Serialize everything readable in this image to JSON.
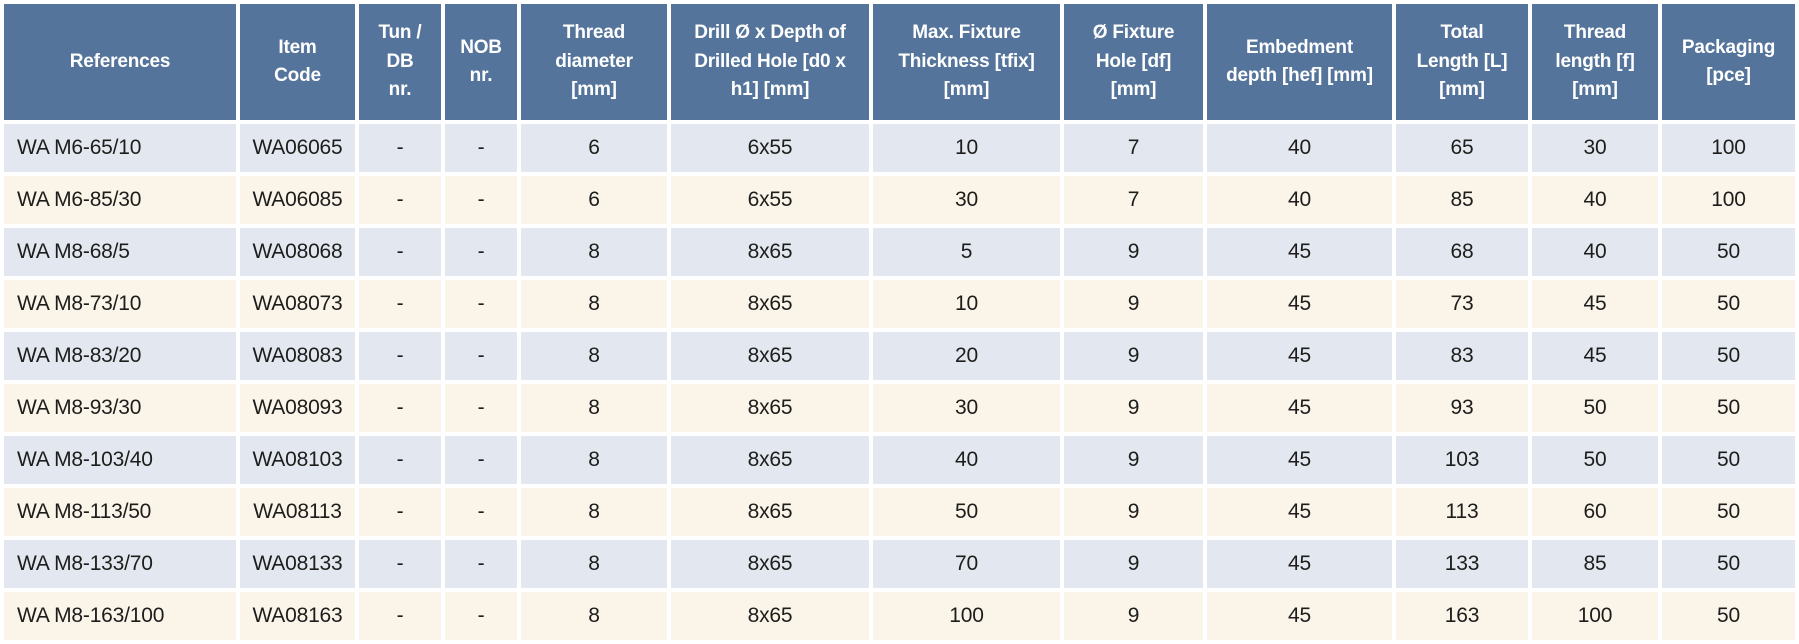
{
  "colors": {
    "header_bg": "#54749b",
    "header_text": "#ffffff",
    "row_stripe_blue": "#e3e8f0",
    "row_stripe_cream": "#faf4e9",
    "grid_gap": "#ffffff",
    "body_text": "#1d1d1b"
  },
  "table": {
    "columns": [
      {
        "key": "references",
        "label": "References"
      },
      {
        "key": "item_code",
        "label": "Item\nCode"
      },
      {
        "key": "tun_db_nr",
        "label": "Tun /\nDB\nnr."
      },
      {
        "key": "nob_nr",
        "label": "NOB\nnr."
      },
      {
        "key": "thread_diameter",
        "label": "Thread\ndiameter\n[mm]"
      },
      {
        "key": "drill_depth",
        "label": "Drill Ø x Depth of\nDrilled Hole [d0 x\nh1] [mm]"
      },
      {
        "key": "max_fixture_thickness",
        "label": "Max. Fixture\nThickness [tfix]\n[mm]"
      },
      {
        "key": "fixture_hole",
        "label": "Ø Fixture\nHole [df]\n[mm]"
      },
      {
        "key": "embedment_depth",
        "label": "Embedment\ndepth [hef] [mm]"
      },
      {
        "key": "total_length",
        "label": "Total\nLength [L]\n[mm]"
      },
      {
        "key": "thread_length",
        "label": "Thread\nlength [f]\n[mm]"
      },
      {
        "key": "packaging",
        "label": "Packaging\n[pce]"
      }
    ],
    "rows": [
      {
        "references": "WA M6-65/10",
        "item_code": "WA06065",
        "tun_db_nr": "-",
        "nob_nr": "-",
        "thread_diameter": "6",
        "drill_depth": "6x55",
        "max_fixture_thickness": "10",
        "fixture_hole": "7",
        "embedment_depth": "40",
        "total_length": "65",
        "thread_length": "30",
        "packaging": "100"
      },
      {
        "references": "WA M6-85/30",
        "item_code": "WA06085",
        "tun_db_nr": "-",
        "nob_nr": "-",
        "thread_diameter": "6",
        "drill_depth": "6x55",
        "max_fixture_thickness": "30",
        "fixture_hole": "7",
        "embedment_depth": "40",
        "total_length": "85",
        "thread_length": "40",
        "packaging": "100"
      },
      {
        "references": "WA M8-68/5",
        "item_code": "WA08068",
        "tun_db_nr": "-",
        "nob_nr": "-",
        "thread_diameter": "8",
        "drill_depth": "8x65",
        "max_fixture_thickness": "5",
        "fixture_hole": "9",
        "embedment_depth": "45",
        "total_length": "68",
        "thread_length": "40",
        "packaging": "50"
      },
      {
        "references": "WA M8-73/10",
        "item_code": "WA08073",
        "tun_db_nr": "-",
        "nob_nr": "-",
        "thread_diameter": "8",
        "drill_depth": "8x65",
        "max_fixture_thickness": "10",
        "fixture_hole": "9",
        "embedment_depth": "45",
        "total_length": "73",
        "thread_length": "45",
        "packaging": "50"
      },
      {
        "references": "WA M8-83/20",
        "item_code": "WA08083",
        "tun_db_nr": "-",
        "nob_nr": "-",
        "thread_diameter": "8",
        "drill_depth": "8x65",
        "max_fixture_thickness": "20",
        "fixture_hole": "9",
        "embedment_depth": "45",
        "total_length": "83",
        "thread_length": "45",
        "packaging": "50"
      },
      {
        "references": "WA M8-93/30",
        "item_code": "WA08093",
        "tun_db_nr": "-",
        "nob_nr": "-",
        "thread_diameter": "8",
        "drill_depth": "8x65",
        "max_fixture_thickness": "30",
        "fixture_hole": "9",
        "embedment_depth": "45",
        "total_length": "93",
        "thread_length": "50",
        "packaging": "50"
      },
      {
        "references": "WA M8-103/40",
        "item_code": "WA08103",
        "tun_db_nr": "-",
        "nob_nr": "-",
        "thread_diameter": "8",
        "drill_depth": "8x65",
        "max_fixture_thickness": "40",
        "fixture_hole": "9",
        "embedment_depth": "45",
        "total_length": "103",
        "thread_length": "50",
        "packaging": "50"
      },
      {
        "references": "WA M8-113/50",
        "item_code": "WA08113",
        "tun_db_nr": "-",
        "nob_nr": "-",
        "thread_diameter": "8",
        "drill_depth": "8x65",
        "max_fixture_thickness": "50",
        "fixture_hole": "9",
        "embedment_depth": "45",
        "total_length": "113",
        "thread_length": "60",
        "packaging": "50"
      },
      {
        "references": "WA M8-133/70",
        "item_code": "WA08133",
        "tun_db_nr": "-",
        "nob_nr": "-",
        "thread_diameter": "8",
        "drill_depth": "8x65",
        "max_fixture_thickness": "70",
        "fixture_hole": "9",
        "embedment_depth": "45",
        "total_length": "133",
        "thread_length": "85",
        "packaging": "50"
      },
      {
        "references": "WA M8-163/100",
        "item_code": "WA08163",
        "tun_db_nr": "-",
        "nob_nr": "-",
        "thread_diameter": "8",
        "drill_depth": "8x65",
        "max_fixture_thickness": "100",
        "fixture_hole": "9",
        "embedment_depth": "45",
        "total_length": "163",
        "thread_length": "100",
        "packaging": "50"
      }
    ]
  }
}
